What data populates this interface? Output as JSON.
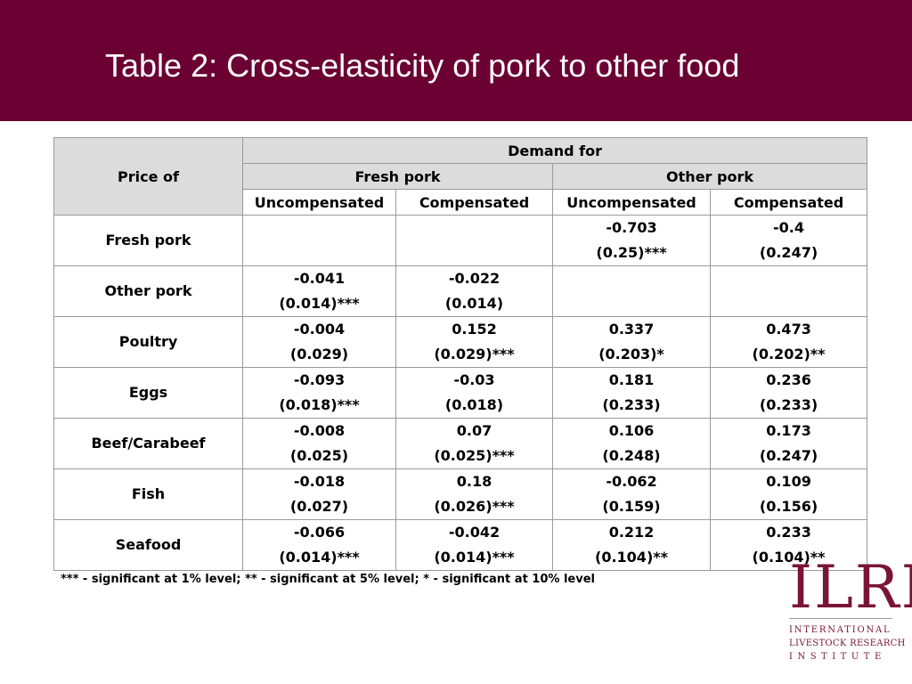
{
  "slide": {
    "title": "Table 2: Cross-elasticity of pork to other food"
  },
  "colors": {
    "header_band": "#6b0032",
    "header_cell": "#dcdcdc",
    "logo": "#7a1437"
  },
  "table": {
    "corner_label": "Price of",
    "group_header": "Demand for",
    "subgroups": [
      "Fresh pork",
      "Other pork"
    ],
    "columns": [
      "Uncompensated",
      "Compensated",
      "Uncompensated",
      "Compensated"
    ],
    "rows": [
      {
        "label": "Fresh pork",
        "cells": [
          {
            "value": "",
            "se": ""
          },
          {
            "value": "",
            "se": ""
          },
          {
            "value": "-0.703",
            "se": "(0.25)***"
          },
          {
            "value": "-0.4",
            "se": "(0.247)"
          }
        ]
      },
      {
        "label": "Other pork",
        "cells": [
          {
            "value": "-0.041",
            "se": "(0.014)***"
          },
          {
            "value": "-0.022",
            "se": "(0.014)"
          },
          {
            "value": "",
            "se": ""
          },
          {
            "value": "",
            "se": ""
          }
        ]
      },
      {
        "label": "Poultry",
        "cells": [
          {
            "value": "-0.004",
            "se": "(0.029)"
          },
          {
            "value": "0.152",
            "se": "(0.029)***"
          },
          {
            "value": "0.337",
            "se": "(0.203)*"
          },
          {
            "value": "0.473",
            "se": "(0.202)**"
          }
        ]
      },
      {
        "label": "Eggs",
        "cells": [
          {
            "value": "-0.093",
            "se": "(0.018)***"
          },
          {
            "value": "-0.03",
            "se": "(0.018)"
          },
          {
            "value": "0.181",
            "se": "(0.233)"
          },
          {
            "value": "0.236",
            "se": "(0.233)"
          }
        ]
      },
      {
        "label": "Beef/Carabeef",
        "cells": [
          {
            "value": "-0.008",
            "se": "(0.025)"
          },
          {
            "value": "0.07",
            "se": "(0.025)***"
          },
          {
            "value": "0.106",
            "se": "(0.248)"
          },
          {
            "value": "0.173",
            "se": "(0.247)"
          }
        ]
      },
      {
        "label": "Fish",
        "cells": [
          {
            "value": "-0.018",
            "se": "(0.027)"
          },
          {
            "value": "0.18",
            "se": "(0.026)***"
          },
          {
            "value": "-0.062",
            "se": "(0.159)"
          },
          {
            "value": "0.109",
            "se": "(0.156)"
          }
        ]
      },
      {
        "label": "Seafood",
        "cells": [
          {
            "value": "-0.066",
            "se": "(0.014)***"
          },
          {
            "value": "-0.042",
            "se": "(0.014)***"
          },
          {
            "value": "0.212",
            "se": "(0.104)**"
          },
          {
            "value": "0.233",
            "se": "(0.104)**"
          }
        ]
      }
    ]
  },
  "footnote": "*** - significant at 1% level; ** - significant at 5% level; * - significant at 10% level",
  "logo": {
    "mark": "ILRI",
    "line1": "INTERNATIONAL",
    "line2": "LIVESTOCK RESEARCH",
    "line3": "INSTITUTE"
  }
}
